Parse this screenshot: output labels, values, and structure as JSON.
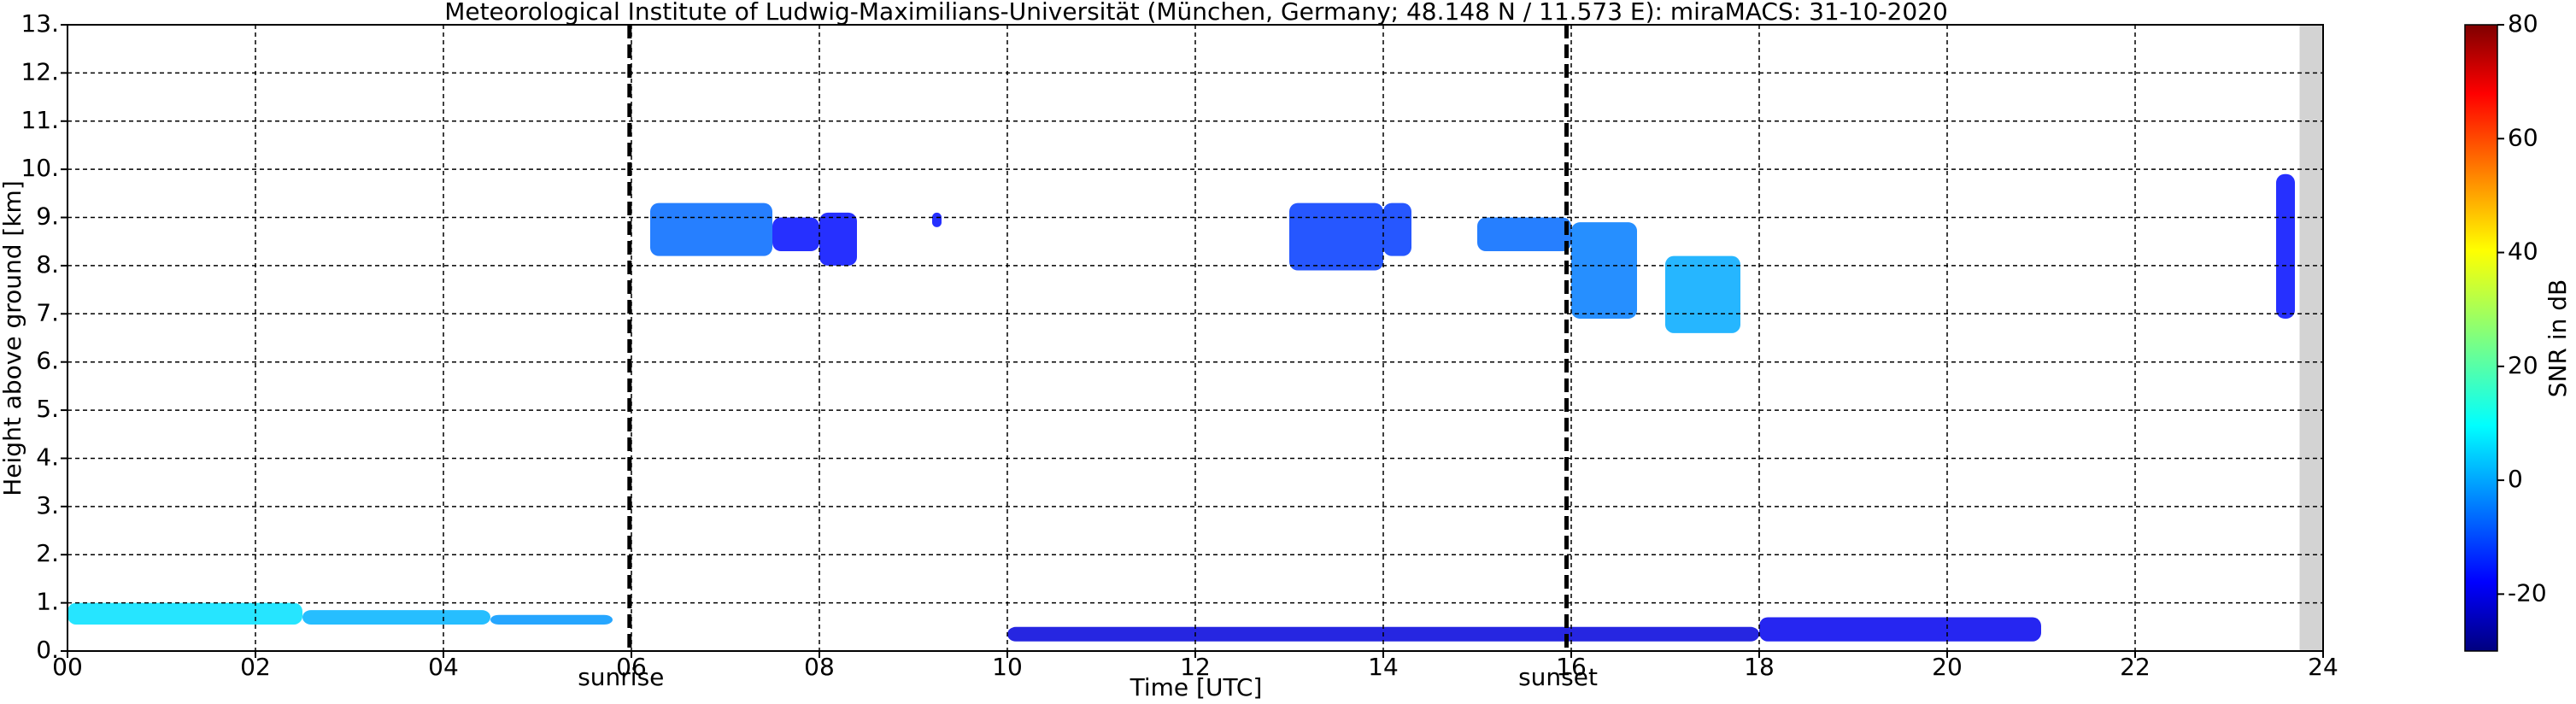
{
  "chart_data": {
    "type": "time-height",
    "title": "Meteorological Institute of Ludwig-Maximilians-Universität (München, Germany; 48.148 N / 11.573 E):    miraMACS: 31-10-2020",
    "xlabel": "Time [UTC]",
    "ylabel": "Height above ground [km]",
    "colorbar_label": "SNR in dB",
    "xlim": [
      0,
      24
    ],
    "ylim": [
      0,
      13
    ],
    "clim": [
      -30,
      80
    ],
    "xticks": [
      {
        "value": 0,
        "label": "00"
      },
      {
        "value": 2,
        "label": "02"
      },
      {
        "value": 4,
        "label": "04"
      },
      {
        "value": 6,
        "label": "06"
      },
      {
        "value": 8,
        "label": "08"
      },
      {
        "value": 10,
        "label": "10"
      },
      {
        "value": 12,
        "label": "12"
      },
      {
        "value": 14,
        "label": "14"
      },
      {
        "value": 16,
        "label": "16"
      },
      {
        "value": 18,
        "label": "18"
      },
      {
        "value": 20,
        "label": "20"
      },
      {
        "value": 22,
        "label": "22"
      },
      {
        "value": 24,
        "label": "24"
      }
    ],
    "yticks": [
      {
        "value": 0,
        "label": "0."
      },
      {
        "value": 1,
        "label": "1."
      },
      {
        "value": 2,
        "label": "2."
      },
      {
        "value": 3,
        "label": "3."
      },
      {
        "value": 4,
        "label": "4."
      },
      {
        "value": 5,
        "label": "5."
      },
      {
        "value": 6,
        "label": "6."
      },
      {
        "value": 7,
        "label": "7."
      },
      {
        "value": 8,
        "label": "8."
      },
      {
        "value": 9,
        "label": "9."
      },
      {
        "value": 10,
        "label": "10."
      },
      {
        "value": 11,
        "label": "11."
      },
      {
        "value": 12,
        "label": "12."
      },
      {
        "value": 13,
        "label": "13."
      }
    ],
    "cticks": [
      -20,
      0,
      20,
      40,
      60,
      80
    ],
    "grid": true,
    "colormap": "jet",
    "nodata_from": 23.75,
    "annotations": [
      {
        "text": "sunrise",
        "x": 5.98
      },
      {
        "text": "sunset",
        "x": 15.95
      }
    ],
    "echoes": [
      {
        "time": [
          0.0,
          2.5
        ],
        "height": [
          0.55,
          1.0
        ],
        "snr": 8
      },
      {
        "time": [
          2.5,
          4.5
        ],
        "height": [
          0.55,
          0.85
        ],
        "snr": 3
      },
      {
        "time": [
          4.5,
          5.8
        ],
        "height": [
          0.55,
          0.75
        ],
        "snr": 0
      },
      {
        "time": [
          6.2,
          7.5
        ],
        "height": [
          8.2,
          9.3
        ],
        "snr": -5
      },
      {
        "time": [
          7.5,
          8.0
        ],
        "height": [
          8.3,
          9.0
        ],
        "snr": -15
      },
      {
        "time": [
          8.0,
          8.4
        ],
        "height": [
          8.0,
          9.1
        ],
        "snr": -15
      },
      {
        "time": [
          9.2,
          9.3
        ],
        "height": [
          8.8,
          9.1
        ],
        "snr": -15
      },
      {
        "time": [
          13.0,
          14.0
        ],
        "height": [
          7.9,
          9.3
        ],
        "snr": -10
      },
      {
        "time": [
          14.0,
          14.3
        ],
        "height": [
          8.2,
          9.3
        ],
        "snr": -10
      },
      {
        "time": [
          15.0,
          16.0
        ],
        "height": [
          8.3,
          9.0
        ],
        "snr": -5
      },
      {
        "time": [
          16.0,
          16.7
        ],
        "height": [
          6.9,
          8.9
        ],
        "snr": -3
      },
      {
        "time": [
          17.0,
          17.8
        ],
        "height": [
          6.6,
          8.2
        ],
        "snr": 2
      },
      {
        "time": [
          23.5,
          23.7
        ],
        "height": [
          6.9,
          9.9
        ],
        "snr": -15
      },
      {
        "time": [
          10.0,
          18.0
        ],
        "height": [
          0.2,
          0.5
        ],
        "snr": -20
      },
      {
        "time": [
          18.0,
          21.0
        ],
        "height": [
          0.2,
          0.7
        ],
        "snr": -18
      }
    ]
  }
}
